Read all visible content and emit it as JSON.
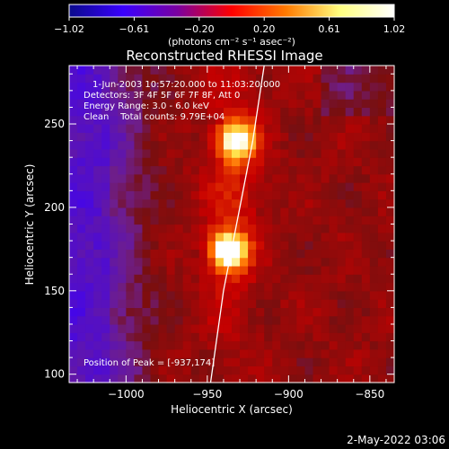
{
  "colorbar": {
    "tick_labels": [
      "-1.02",
      "-0.61",
      "-0.20",
      "0.20",
      "0.61",
      "1.02"
    ],
    "unit_label": "(photons cm⁻² s⁻¹ asec⁻²)",
    "colors": [
      "#0a0a8c",
      "#3a00ff",
      "#7a00a0",
      "#ff0000",
      "#ff7a00",
      "#ffff80",
      "#ffffff"
    ]
  },
  "chart_data": {
    "type": "heatmap",
    "title": "Reconstructed RHESSI Image",
    "xlabel": "Heliocentric X (arcsec)",
    "ylabel": "Heliocentric Y (arcsec)",
    "xlim": [
      -1035,
      -835
    ],
    "ylim": [
      95,
      285
    ],
    "x_ticks": [
      -1000,
      -950,
      -900,
      -850
    ],
    "x_tick_labels": [
      "-1000",
      "-950",
      "-900",
      "-850"
    ],
    "y_ticks": [
      100,
      150,
      200,
      250
    ],
    "y_tick_labels": [
      "100",
      "150",
      "200",
      "250"
    ],
    "vmin": -1.02,
    "vmax": 1.02,
    "sources": [
      {
        "x": -937,
        "y": 174,
        "peak": 1.02
      },
      {
        "x": -932,
        "y": 240,
        "peak": 0.85
      }
    ],
    "limb_curve": {
      "x": [
        -948,
        -940,
        -930,
        -922,
        -915
      ],
      "y": [
        95,
        150,
        200,
        240,
        285
      ]
    },
    "annotations": {
      "time": "1-Jun-2003 10:57:20.000 to 11:03:20.000",
      "detectors": "Detectors: 3F 4F 5F 6F 7F 8F, Att 0",
      "energy": "Energy Range: 3.0 - 6.0 keV",
      "method": "Clean    Total counts: 9.79E+04",
      "peak": "Position of Peak = [-937,174]"
    }
  },
  "footer": {
    "date": "2-May-2022 03:06"
  }
}
